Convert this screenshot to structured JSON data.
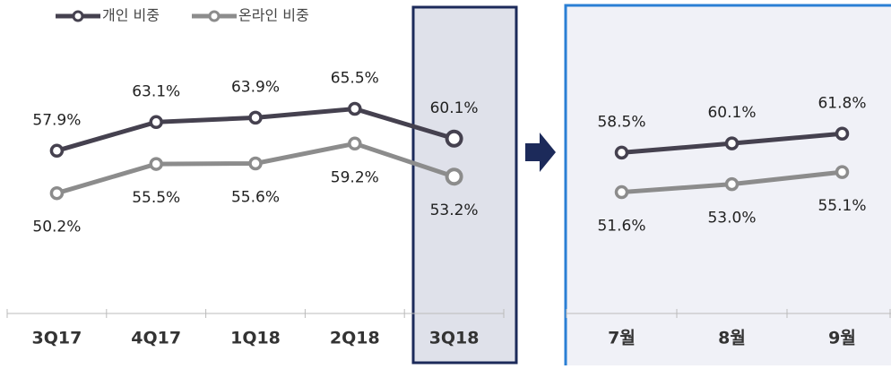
{
  "chart_data": [
    {
      "type": "line",
      "categories": [
        "3Q17",
        "4Q17",
        "1Q18",
        "2Q18",
        "3Q18"
      ],
      "series": [
        {
          "name": "개인 비중",
          "color": "#45414f",
          "values": [
            57.9,
            63.1,
            63.9,
            65.5,
            60.1
          ],
          "value_labels": [
            "57.9%",
            "63.1%",
            "63.9%",
            "65.5%",
            "60.1%"
          ]
        },
        {
          "name": "온라인 비중",
          "color": "#8c8c8c",
          "values": [
            50.2,
            55.5,
            55.6,
            59.2,
            53.2
          ],
          "value_labels": [
            "50.2%",
            "55.5%",
            "55.6%",
            "59.2%",
            "53.2%"
          ]
        }
      ],
      "ylim": [
        30,
        82
      ]
    },
    {
      "type": "line",
      "categories": [
        "7월",
        "8월",
        "9월"
      ],
      "series": [
        {
          "color": "#45414f",
          "values": [
            58.5,
            60.1,
            61.8
          ],
          "value_labels": [
            "58.5%",
            "60.1%",
            "61.8%"
          ]
        },
        {
          "color": "#8c8c8c",
          "values": [
            51.6,
            53.0,
            55.1
          ],
          "value_labels": [
            "51.6%",
            "53.0%",
            "55.1%"
          ]
        }
      ],
      "ylim": [
        32,
        82
      ]
    }
  ]
}
